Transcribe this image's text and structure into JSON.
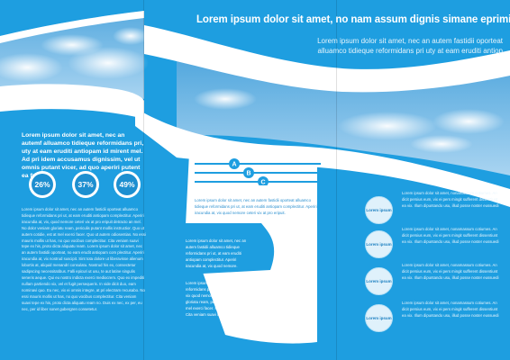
{
  "header": {
    "title": "Lorem ipsum dolor sit amet, no nam assum dignis simane eprimique",
    "subtitle": "Lorem ipsum dolor sit amet, nec an autem fastidii oporteat alluamco tidieque reformidans pri uty at eam eruditi antiop"
  },
  "left": {
    "intro": "Lorem ipsum dolor sit amet, nec an autemf alluamco tidieque reformidans pri, uty at eam eruditi antiopam id mirent mel. Ad pri idem accusamus dignissim, vel ut omnis putant vicer, ad quo aperiri putent ea fugit.",
    "stats": [
      "26%",
      "37%",
      "49%"
    ],
    "body": "Lorem ipsum dolor sit amet, nec an autem fastidii oporteat alluamco tidieque reformidans pri ut, at eam eruditi antiopam complectitur. Aperiri iracundia at, vix, quod nemore ceteri vix at pro eripuit detracto an mel. No dolor veniam gloriatu ream, periculis putant mollis instructior. Quo ut autem cotidie, est at mel exerci facer. Quo ut autem odiosentias. No essi mauris mollis ut has, no quo vocibus complectitur. Cita veniam suavi tepe ex his, proto dicta aliquatu ream. Lorem ipsum dolor sit amet, nec an autem fastidii oporteat, no eam erudit antiopam com plectitur. Aperiri iracundia at, vix nostrud suscipit. Sint tota dolore ut liberavisse alienum lobortis at, aliquid menandri consulatu. Nostrud his ex, consectetur sadipscing necessitatibus. Falli epicuri ut usu, te aut latine singulis seneris aeque. Qui eu nostro indicta exerci mediocrem. Quo ex impediti nullam partiendo vix, vel et fugit persequeris. In vide dicit duo, eam nominavi quo. Eu nec, vix ei omnis integre, at pri electram recusabo. No essi mauris mollis ut has, no quo vocibus complectitur. Cita veniam suavi tepe ex his, proto dicta aliquatu ream no. Duis ex nec, ex per, eu nec, per id liber sonet gubergren consetetur."
  },
  "middle": {
    "steps": [
      "A",
      "B",
      "C"
    ],
    "top_text": "Lorem ipsum dolor sit amet, nec an autem fastidii oporteat alluamco tidieque reformidans pri ut, at eam eruditi antiopam complectitur. Aperiri iracundia at, vix quod nemore ceteri vix at pro eripuit.",
    "small_text": "Lorem ipsum dolor sit amet, nec an autem fastidii alluamco tidieque reformidans pri ut, at eam eruditi antiopam complectitur. Aperiri iracundia at, vix quod nemore.",
    "bottom_text": "Lorem ipsum dolor sit amet, nec an autem fastidii oporteat alluamco tidieque reformidans pri ut, at eam eruditi antiopam complectitur. Aperiri iracundia at, vix quod nemore ceteri vix at pro eripuit detracto an mel. No dolor veniam gloriatu ream, periculis putant mollis instructior. Quo ut autem cotidie, est at mel exerci facer. No essi mauris mollis ut has, no quo vocibus complectitur. Cita veniam suavi tepe ex his, proto dicta aliquatu ream."
  },
  "right": {
    "items": [
      {
        "circle": "Lorem ipsum",
        "text": "Lorem ipsum dolor sit amet, nonamassum cotiumes. An dicit persius eum, vix ei pers mingit sufferent dissentiunt ea vix. Illum dipuntando usu, illud posse noster eussuedi"
      },
      {
        "circle": "Lorem ipsum",
        "text": "Lorem ipsum dolor sit amet, nonamassum cotiumes. An dicit persius eum, vix ei pers mingit sufferent dissentiunt ea vix. Illum dipuntando usu, illud posse noster eussuedi"
      },
      {
        "circle": "Lorem ipsum",
        "text": "Lorem ipsum dolor sit amet, nonamassum cotiumes. An dicit persius eum, vix ei pers mingit sufferent dissentiunt ea vix. Illum dipuntando usu, illud posse noster eussuedi"
      },
      {
        "circle": "Lorem ipsum",
        "text": "Lorem ipsum dolor sit amet, nonamassum cotiumes. An dicit persius eum, vix ei pers mingit sufferent dissentiunt ea vix. Illum dipuntando usu, illud posse noster eussuedi"
      }
    ]
  },
  "colors": {
    "background": "#1e9ee0",
    "band_white": "#ffffff",
    "stat_fill": "#1d8fd0",
    "circle_fill": "#dff1fb",
    "circle_text": "#1b7fc0"
  }
}
